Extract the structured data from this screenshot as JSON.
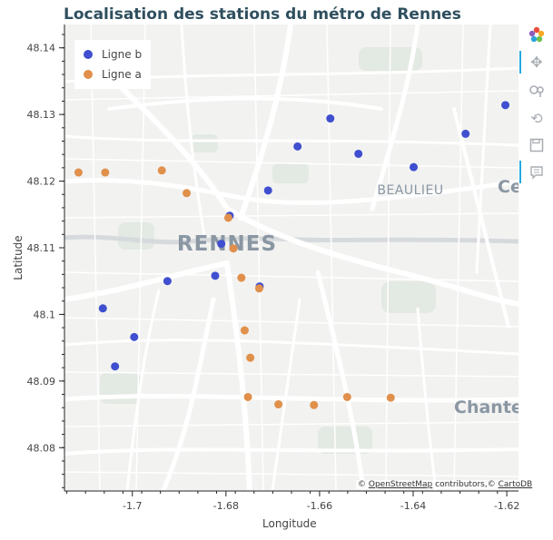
{
  "title": "Localisation des stations du métro de Rennes",
  "colors": {
    "ligne_b": "#3f4fcf",
    "ligne_a": "#e0904b",
    "map_bg": "#f2f2f2",
    "roads": "#ffffff"
  },
  "map_labels": {
    "city": "RENNES",
    "district": "BEAULIEU",
    "edge_right": "Ce",
    "edge_chant": "Chante"
  },
  "attribution": {
    "osm": "OpenStreetMap",
    "mid": " contributors,© ",
    "carto": "CartoDB",
    "prefix": "© "
  },
  "toolbar": {
    "icons": [
      "bokeh-logo-icon",
      "pan-icon",
      "wheel-zoom-icon",
      "reset-icon",
      "save-icon",
      "hover-icon"
    ]
  },
  "chart_data": {
    "type": "scatter",
    "xlabel": "Longitude",
    "ylabel": "Latitude",
    "xlim": [
      -1.7145,
      -1.6175
    ],
    "ylim": [
      48.0735,
      48.1435
    ],
    "xticks": [
      -1.7,
      -1.68,
      -1.66,
      -1.64,
      -1.62
    ],
    "xtick_labels": [
      "-1.7",
      "-1.68",
      "-1.66",
      "-1.64",
      "-1.62"
    ],
    "yticks": [
      48.08,
      48.09,
      48.1,
      48.11,
      48.12,
      48.13,
      48.14
    ],
    "ytick_labels": [
      "48.08",
      "48.09",
      "48.1",
      "48.11",
      "48.12",
      "48.13",
      "48.14"
    ],
    "legend_position": "top-left",
    "series": [
      {
        "name": "Ligne b",
        "color": "#3f4fcf",
        "points": [
          {
            "x": -1.7063,
            "y": 48.1009
          },
          {
            "x": -1.7037,
            "y": 48.0922
          },
          {
            "x": -1.6996,
            "y": 48.0966
          },
          {
            "x": -1.6925,
            "y": 48.105
          },
          {
            "x": -1.6823,
            "y": 48.1058
          },
          {
            "x": -1.681,
            "y": 48.1106
          },
          {
            "x": -1.6792,
            "y": 48.1148
          },
          {
            "x": -1.6728,
            "y": 48.1042
          },
          {
            "x": -1.671,
            "y": 48.1186
          },
          {
            "x": -1.6647,
            "y": 48.1252
          },
          {
            "x": -1.6577,
            "y": 48.1294
          },
          {
            "x": -1.6517,
            "y": 48.1241
          },
          {
            "x": -1.6399,
            "y": 48.1221
          },
          {
            "x": -1.6288,
            "y": 48.1271
          },
          {
            "x": -1.6203,
            "y": 48.1314
          }
        ]
      },
      {
        "name": "Ligne a",
        "color": "#e0904b",
        "points": [
          {
            "x": -1.7115,
            "y": 48.1213
          },
          {
            "x": -1.7058,
            "y": 48.1213
          },
          {
            "x": -1.6937,
            "y": 48.1216
          },
          {
            "x": -1.6884,
            "y": 48.1182
          },
          {
            "x": -1.6795,
            "y": 48.1145
          },
          {
            "x": -1.6784,
            "y": 48.1099
          },
          {
            "x": -1.6767,
            "y": 48.1055
          },
          {
            "x": -1.6729,
            "y": 48.1039
          },
          {
            "x": -1.676,
            "y": 48.0976
          },
          {
            "x": -1.6748,
            "y": 48.0935
          },
          {
            "x": -1.6753,
            "y": 48.0876
          },
          {
            "x": -1.6688,
            "y": 48.0865
          },
          {
            "x": -1.6612,
            "y": 48.0864
          },
          {
            "x": -1.6541,
            "y": 48.0876
          },
          {
            "x": -1.6448,
            "y": 48.0875
          }
        ]
      }
    ]
  }
}
